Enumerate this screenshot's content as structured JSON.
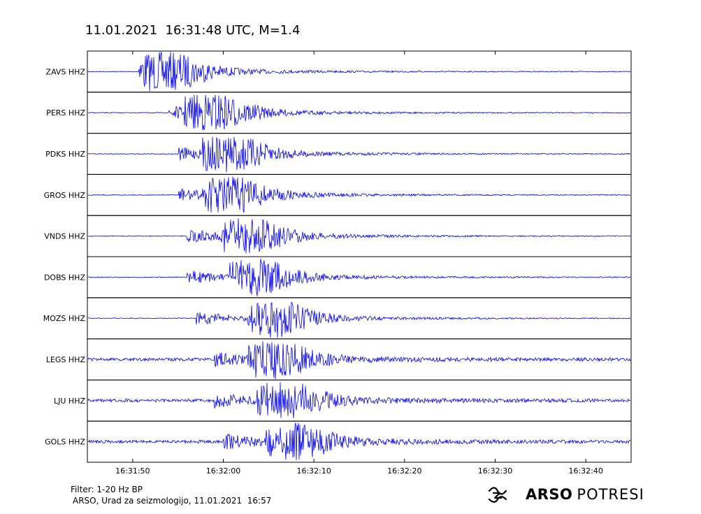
{
  "title": "11.01.2021  16:31:48 UTC, M=1.4",
  "footer": {
    "filter": "Filter: 1-20 Hz BP",
    "credit": "ARSO, Urad za seizmologijo, 11.01.2021  16:57"
  },
  "brand": {
    "name": "ARSO",
    "product": "POTRESI",
    "logo_icon": "arso-wave-logo-icon"
  },
  "chart_data": {
    "type": "line",
    "title": "11.01.2021  16:31:48 UTC, M=1.4",
    "xlabel": "",
    "ylabel": "",
    "x_range": [
      "16:31:45",
      "16:32:45"
    ],
    "x_ticks": [
      "16:31:50",
      "16:32:00",
      "16:32:10",
      "16:32:20",
      "16:32:30",
      "16:32:40"
    ],
    "grid": false,
    "legend": "none",
    "line_color": "#0000ee",
    "traces": [
      {
        "station": "ZAVS HHZ",
        "p_arrival": "16:31:51",
        "s_arrival": "16:31:53"
      },
      {
        "station": "PERS HHZ",
        "p_arrival": "16:31:54",
        "s_arrival": "16:31:58"
      },
      {
        "station": "PDKS HHZ",
        "p_arrival": "16:31:55",
        "s_arrival": "16:32:00"
      },
      {
        "station": "GROS HHZ",
        "p_arrival": "16:31:55",
        "s_arrival": "16:32:00"
      },
      {
        "station": "VNDS HHZ",
        "p_arrival": "16:31:56",
        "s_arrival": "16:32:02"
      },
      {
        "station": "DOBS HHZ",
        "p_arrival": "16:31:56",
        "s_arrival": "16:32:03"
      },
      {
        "station": "MOZS HHZ",
        "p_arrival": "16:31:57",
        "s_arrival": "16:32:05"
      },
      {
        "station": "LEGS HHZ",
        "p_arrival": "16:31:59",
        "s_arrival": "16:32:05"
      },
      {
        "station": "LJU HHZ",
        "p_arrival": "16:31:59",
        "s_arrival": "16:32:06"
      },
      {
        "station": "GOLS HHZ",
        "p_arrival": "16:32:00",
        "s_arrival": "16:32:07"
      }
    ]
  }
}
